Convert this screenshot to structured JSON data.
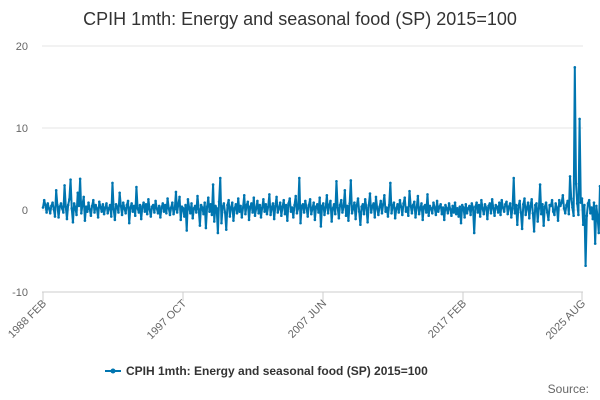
{
  "chart_data": {
    "type": "line",
    "title": "CPIH 1mth: Energy and seasonal food (SP) 2015=100",
    "xlabel": "",
    "ylabel": "",
    "ylim": [
      -10,
      20
    ],
    "y_ticks": [
      "20",
      "10",
      "0",
      "-10"
    ],
    "x_ticks": [
      "1988 FEB",
      "1997 OCT",
      "2007 JUN",
      "2017 FEB",
      "2025 AUG"
    ],
    "x_range": [
      "1988-02",
      "2025-08"
    ],
    "grid": "horizontal",
    "legend_position": "bottom",
    "series": [
      {
        "name": "CPIH 1mth: Energy and seasonal food (SP) 2015=100",
        "color": "#0075b0",
        "start": "1988-02",
        "frequency": "monthly",
        "values": [
          0.3,
          1.2,
          0.6,
          -0.3,
          0.8,
          0.2,
          -0.4,
          0.5,
          0.9,
          0.1,
          -0.8,
          2.4,
          0.6,
          -0.9,
          0.4,
          0.8,
          0.2,
          -0.3,
          3.0,
          0.4,
          -1.1,
          0.6,
          1.3,
          3.7,
          0.2,
          -1.5,
          0.8,
          0.3,
          -0.6,
          2.1,
          0.5,
          3.8,
          -0.4,
          0.7,
          1.6,
          -1.3,
          0.4,
          -0.2,
          0.9,
          0.1,
          -0.7,
          0.5,
          1.2,
          -0.3,
          0.6,
          0.2,
          -0.9,
          1.0,
          0.4,
          -0.2,
          0.7,
          -0.5,
          0.3,
          0.8,
          -0.4,
          0.2,
          0.6,
          -0.8,
          3.3,
          0.1,
          -1.2,
          0.7,
          0.4,
          -0.3,
          2.1,
          0.5,
          -0.6,
          0.9,
          0.2,
          -0.4,
          0.6,
          1.1,
          -1.6,
          0.3,
          0.8,
          -0.2,
          0.5,
          -0.7,
          2.8,
          0.2,
          -0.3,
          0.6,
          -1.1,
          0.4,
          0.9,
          -0.2,
          0.7,
          -0.5,
          1.3,
          0.1,
          -0.8,
          0.4,
          0.6,
          -0.3,
          1.1,
          0.2,
          -0.4,
          0.5,
          -0.9,
          0.3,
          0.8,
          -0.2,
          0.6,
          -0.4,
          1.4,
          0.2,
          -0.6,
          0.3,
          0.9,
          -0.5,
          0.1,
          2.2,
          -0.3,
          0.7,
          1.6,
          -1.2,
          0.4,
          0.2,
          -0.8,
          0.6,
          -2.5,
          1.3,
          0.3,
          -0.4,
          0.8,
          -1.0,
          0.2,
          0.5,
          -0.3,
          1.7,
          0.1,
          -1.9,
          0.6,
          0.3,
          -0.5,
          0.9,
          -2.2,
          0.4,
          1.5,
          -0.2,
          0.7,
          -0.6,
          3.1,
          -1.4,
          0.5,
          0.2,
          -2.8,
          1.0,
          3.9,
          -1.6,
          0.4,
          0.8,
          -0.3,
          -2.4,
          0.6,
          1.2,
          -0.8,
          0.3,
          0.9,
          -1.3,
          0.2,
          0.7,
          -0.4,
          1.4,
          -0.2,
          0.5,
          -0.9,
          0.3,
          1.8,
          -0.5,
          0.6,
          1.0,
          -1.2,
          0.4,
          0.8,
          -0.3,
          1.5,
          -0.7,
          0.2,
          1.1,
          -0.4,
          0.6,
          -0.9,
          0.3,
          1.3,
          -0.2,
          0.7,
          -0.5,
          0.4,
          1.9,
          -0.6,
          0.3,
          0.8,
          -1.1,
          0.5,
          1.6,
          -0.3,
          0.2,
          0.9,
          -0.7,
          0.4,
          1.2,
          -0.5,
          0.6,
          -1.3,
          0.8,
          1.4,
          -0.2,
          0.3,
          -0.9,
          0.6,
          1.7,
          -0.4,
          0.2,
          3.9,
          -1.6,
          0.5,
          0.7,
          -0.3,
          1.1,
          0.3,
          -0.8,
          0.6,
          1.3,
          -0.5,
          0.2,
          0.9,
          -1.2,
          0.4,
          0.7,
          -0.3,
          1.5,
          -2.0,
          0.5,
          0.8,
          -0.6,
          0.3,
          1.8,
          -0.4,
          0.6,
          1.1,
          -1.4,
          0.2,
          0.7,
          -0.5,
          3.5,
          0.3,
          -1.0,
          0.6,
          1.2,
          -0.3,
          0.4,
          2.4,
          -0.7,
          0.5,
          -1.3,
          0.8,
          3.6,
          -0.4,
          0.2,
          0.9,
          -1.1,
          0.6,
          1.4,
          -0.2,
          -1.8,
          0.4,
          0.7,
          -0.5,
          1.3,
          0.3,
          -1.5,
          0.6,
          2.0,
          -0.3,
          0.5,
          0.8,
          -0.9,
          1.6,
          0.2,
          -0.6,
          0.4,
          1.1,
          -0.4,
          0.7,
          1.8,
          -0.2,
          0.3,
          -0.8,
          0.6,
          3.3,
          -0.4,
          0.5,
          0.9,
          -1.0,
          0.2,
          0.7,
          -0.3,
          1.2,
          0.4,
          -0.6,
          0.8,
          1.5,
          -0.2,
          0.3,
          -0.7,
          2.3,
          0.5,
          -0.4,
          0.6,
          1.0,
          -0.9,
          0.3,
          1.7,
          -0.5,
          0.2,
          0.8,
          -1.2,
          0.4,
          0.6,
          -0.3,
          1.9,
          -0.7,
          0.5,
          0.2,
          -0.4,
          0.9,
          0.3,
          -0.6,
          1.1,
          -0.2,
          0.4,
          0.7,
          -0.5,
          0.3,
          -1.2,
          0.6,
          0.2,
          -0.4,
          0.8,
          0.1,
          -0.7,
          0.5,
          -0.3,
          0.9,
          -0.5,
          0.2,
          -0.8,
          0.4,
          -1.6,
          0.6,
          0.3,
          -0.9,
          0.7,
          -0.4,
          0.2,
          0.5,
          -0.6,
          0.8,
          0.3,
          -2.8,
          0.4,
          0.9,
          -0.3,
          0.6,
          -0.8,
          1.2,
          0.2,
          -0.5,
          0.7,
          0.3,
          -1.1,
          0.5,
          0.8,
          -0.4,
          1.3,
          0.2,
          -0.7,
          0.6,
          0.4,
          -0.3,
          0.9,
          -0.6,
          1.2,
          0.3,
          -0.2,
          0.7,
          1.0,
          -0.5,
          0.4,
          0.8,
          -0.9,
          0.2,
          3.9,
          -0.4,
          0.6,
          -1.8,
          0.5,
          1.1,
          -0.3,
          -2.3,
          0.7,
          1.4,
          -0.6,
          0.3,
          0.9,
          -1.0,
          0.5,
          1.3,
          -0.4,
          -2.6,
          0.6,
          0.8,
          -1.4,
          0.2,
          3.1,
          -0.5,
          0.7,
          -1.9,
          0.4,
          0.9,
          -0.3,
          -1.2,
          0.6,
          0.5,
          1.2,
          -0.2,
          -0.6,
          0.8,
          0.3,
          -1.3,
          1.2,
          0.5,
          0.9,
          1.8,
          0.2,
          -0.4,
          0.6,
          1.1,
          -0.5,
          4.1,
          1.4,
          0.3,
          -0.7,
          17.4,
          3.2,
          0.8,
          -0.6,
          11.1,
          0.9,
          1.4,
          -1.8,
          0.6,
          -6.8,
          -0.7,
          0.8,
          1.2,
          -0.4,
          0.3,
          -1.1,
          0.9,
          -4.1,
          0.5,
          -0.9,
          -2.8,
          2.9,
          0.6,
          0.4,
          -0.6,
          0.8,
          0.2,
          0.9,
          0.1,
          -0.7,
          0.6,
          -1.3,
          0.4
        ]
      }
    ]
  },
  "footer": {
    "source_label": "Source:"
  }
}
